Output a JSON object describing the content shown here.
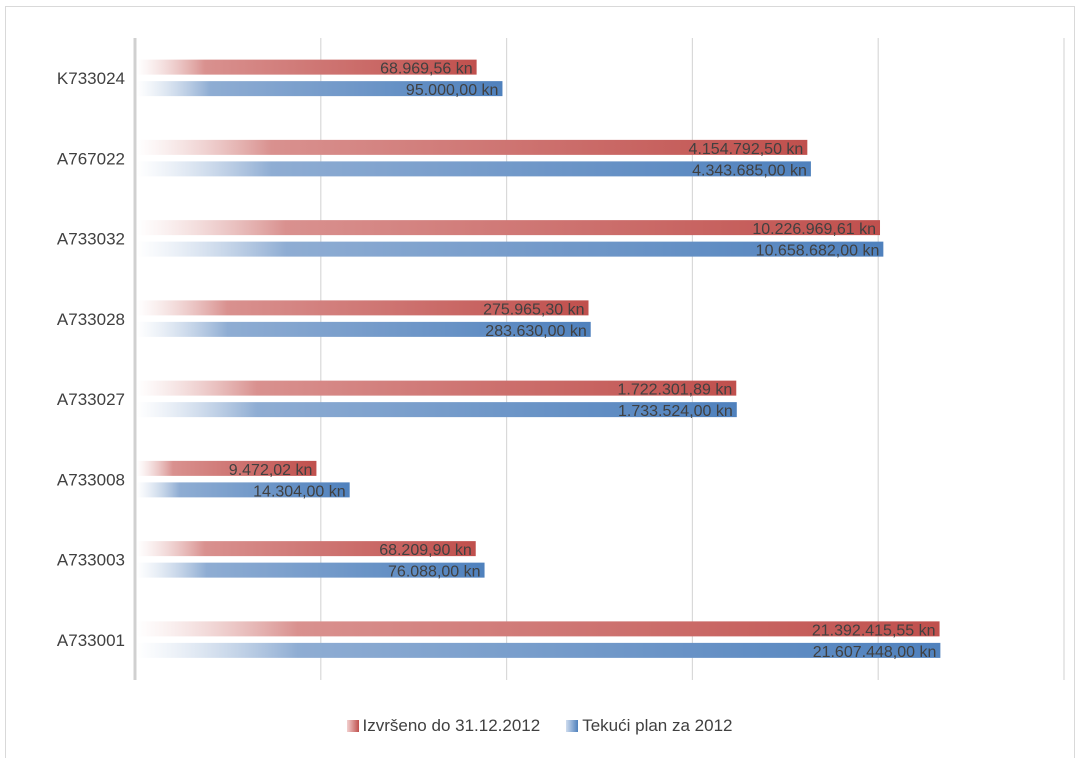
{
  "chart_data": {
    "type": "bar",
    "orientation": "horizontal",
    "categories": [
      "A733001",
      "A733003",
      "A733008",
      "A733027",
      "A733028",
      "A733032",
      "A767022",
      "K733024"
    ],
    "series": [
      {
        "name": "Izvršeno do 31.12.2012",
        "color": "#c0504d",
        "values": [
          21392415.55,
          68209.9,
          9472.02,
          1722301.89,
          275965.3,
          10226969.61,
          4154792.5,
          68969.56
        ],
        "labels": [
          "21.392.415,55 kn",
          "68.209,90 kn",
          "9.472,02 kn",
          "1.722.301,89 kn",
          "275.965,30 kn",
          "10.226.969,61 kn",
          "4.154.792,50 kn",
          "68.969,56 kn"
        ]
      },
      {
        "name": "Tekući plan za 2012",
        "color": "#4f81bd",
        "values": [
          21607448.0,
          76088.0,
          14304.0,
          1733524.0,
          283630.0,
          10658682.0,
          4343685.0,
          95000.0
        ],
        "labels": [
          "21.607.448,00 kn",
          "76.088,00 kn",
          "14.304,00 kn",
          "1.733.524,00 kn",
          "283.630,00 kn",
          "10.658.682,00 kn",
          "4.343.685,00 kn",
          "95.000,00 kn"
        ]
      }
    ],
    "xscale": "log",
    "xlim": [
      1000,
      100000000
    ],
    "category_order": "bottom-to-top",
    "grid": true,
    "legend": "bottom",
    "gradient_fill": true,
    "title": "",
    "xlabel": "",
    "ylabel": ""
  }
}
